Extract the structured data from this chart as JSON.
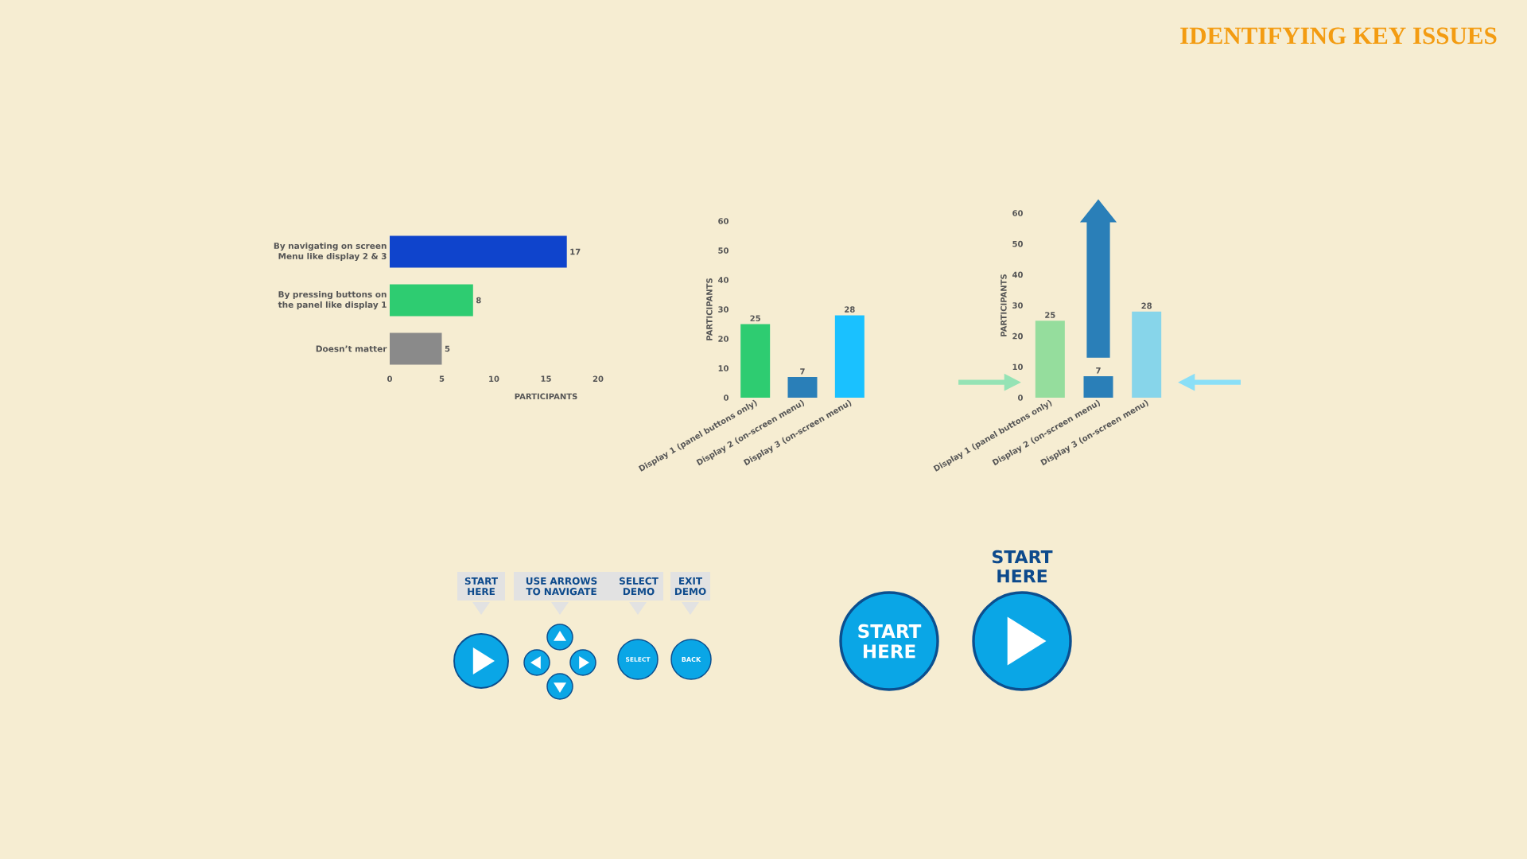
{
  "chart_data": [
    {
      "type": "bar",
      "orientation": "horizontal",
      "categories": [
        "By navigating on screen Menu like display 2 & 3",
        "By pressing buttons on the panel like display 1",
        "Doesn’t matter"
      ],
      "values": [
        17,
        8,
        5
      ],
      "colors": [
        "#0f44cc",
        "#2ecc71",
        "#8a8a8a"
      ],
      "xlim": [
        0,
        20
      ],
      "xticks": [
        0,
        5,
        10,
        15,
        20
      ],
      "xlabel": "PARTICIPANTS",
      "data_labels": true
    },
    {
      "type": "bar",
      "categories": [
        "Display 1 (panel buttons only)",
        "Display 2 (on-screen menu)",
        "Display 3 (on-screen menu)"
      ],
      "values": [
        25,
        7,
        28
      ],
      "colors": [
        "#2ecc71",
        "#2a7fb8",
        "#1ac1ff"
      ],
      "ylim": [
        0,
        60
      ],
      "yticks": [
        0,
        10,
        20,
        30,
        40,
        50,
        60
      ],
      "ylabel": "PARTICIPANTS",
      "data_labels": true
    },
    {
      "type": "bar",
      "categories": [
        "Display 1 (panel buttons only)",
        "Display 2 (on-screen menu)",
        "Display 3 (on-screen menu)"
      ],
      "values": [
        25,
        7,
        28
      ],
      "colors": [
        "#95dd9d",
        "#2a7fb8",
        "#87d5ea"
      ],
      "ylim": [
        0,
        60
      ],
      "yticks": [
        0,
        10,
        20,
        30,
        40,
        50,
        60
      ],
      "ylabel": "PARTICIPANTS",
      "data_labels": true
    },
    {
      "type": "other",
      "title": "IDENTIFYING KEY ISSUES",
      "annotations": [
        "START HERE",
        "USE ARROWS TO NAVIGATE",
        "SELECT DEMO",
        "EXIT DEMO",
        "SELECT",
        "BACK",
        "START HERE",
        "START HERE"
      ]
    }
  ]
}
